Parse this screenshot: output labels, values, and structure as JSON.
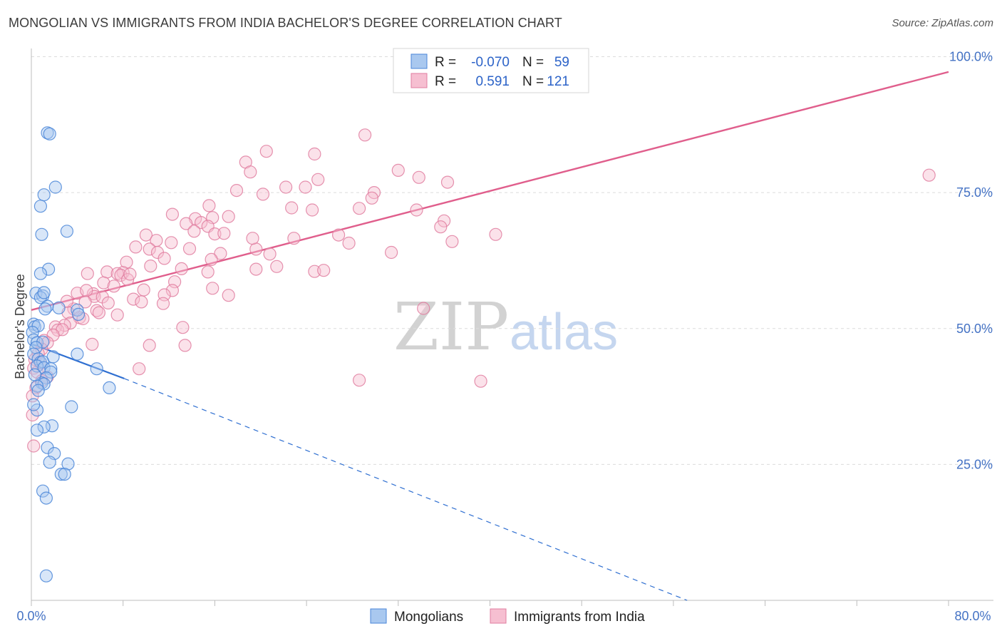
{
  "title": "MONGOLIAN VS IMMIGRANTS FROM INDIA BACHELOR'S DEGREE CORRELATION CHART",
  "source": "Source: ZipAtlas.com",
  "watermark": {
    "zip": "ZIP",
    "atlas": "atlas"
  },
  "colors": {
    "blue": "#4a86d8",
    "blue_fill": "#a9c8ef",
    "blue_line": "#2f6fd1",
    "pink": "#e07ea0",
    "pink_fill": "#f6bfd1",
    "pink_line": "#e05e8c",
    "grid": "#dcdcdc",
    "tick": "#4472c4"
  },
  "legend": {
    "r_label": "R =",
    "n_label": "N =",
    "rows": [
      {
        "series": "mongolians",
        "r": "-0.070",
        "n": "59"
      },
      {
        "series": "india",
        "r": "0.591",
        "n": "121"
      }
    ]
  },
  "bottom_legend": [
    "Mongolians",
    "Immigrants from India"
  ],
  "chart_data": {
    "type": "scatter",
    "title": "MONGOLIAN VS IMMIGRANTS FROM INDIA BACHELOR'S DEGREE CORRELATION CHART",
    "xlabel": "",
    "ylabel": "Bachelor's Degree",
    "xlim": [
      0,
      80
    ],
    "ylim": [
      0,
      100
    ],
    "x_tick_labels": [
      "0.0%",
      "80.0%"
    ],
    "y_ticks": [
      25,
      50,
      75,
      100
    ],
    "y_tick_labels": [
      "25.0%",
      "50.0%",
      "75.0%",
      "100.0%"
    ],
    "grid": true,
    "legend_position": "top-center",
    "series": [
      {
        "name": "Mongolians",
        "color": "#4a86d8",
        "r": -0.07,
        "n": 59,
        "trend": {
          "x0": 0,
          "y0": 47.2,
          "x1": 8.1,
          "y1": 40.8,
          "dashed_to_x": 57.2,
          "dashed_to_y": 0
        },
        "points": [
          [
            1.4,
            86.0
          ],
          [
            1.6,
            85.8
          ],
          [
            2.1,
            76.0
          ],
          [
            1.1,
            74.6
          ],
          [
            0.8,
            72.5
          ],
          [
            3.1,
            67.9
          ],
          [
            0.9,
            67.3
          ],
          [
            1.5,
            60.9
          ],
          [
            0.8,
            60.1
          ],
          [
            0.4,
            56.5
          ],
          [
            1.0,
            56.0
          ],
          [
            0.8,
            55.7
          ],
          [
            1.1,
            56.6
          ],
          [
            1.4,
            54.1
          ],
          [
            1.2,
            53.6
          ],
          [
            2.4,
            53.8
          ],
          [
            4.0,
            53.4
          ],
          [
            4.1,
            52.6
          ],
          [
            0.2,
            50.8
          ],
          [
            0.3,
            50.3
          ],
          [
            0.6,
            50.5
          ],
          [
            0.1,
            49.3
          ],
          [
            0.2,
            47.9
          ],
          [
            0.5,
            47.4
          ],
          [
            1.0,
            47.5
          ],
          [
            0.4,
            46.5
          ],
          [
            0.2,
            45.3
          ],
          [
            4.0,
            45.3
          ],
          [
            1.9,
            44.8
          ],
          [
            0.6,
            44.4
          ],
          [
            0.8,
            43.8
          ],
          [
            1.0,
            43.9
          ],
          [
            0.5,
            43.1
          ],
          [
            1.1,
            42.8
          ],
          [
            1.7,
            42.6
          ],
          [
            1.7,
            42.0
          ],
          [
            5.7,
            42.6
          ],
          [
            1.3,
            40.9
          ],
          [
            0.9,
            40.0
          ],
          [
            1.1,
            39.8
          ],
          [
            0.5,
            39.4
          ],
          [
            0.6,
            38.6
          ],
          [
            6.8,
            39.1
          ],
          [
            3.5,
            35.6
          ],
          [
            0.5,
            35.0
          ],
          [
            1.8,
            32.1
          ],
          [
            1.1,
            31.9
          ],
          [
            0.5,
            31.3
          ],
          [
            1.4,
            28.1
          ],
          [
            2.0,
            27.0
          ],
          [
            1.6,
            25.4
          ],
          [
            3.2,
            25.1
          ],
          [
            2.6,
            23.2
          ],
          [
            2.9,
            23.2
          ],
          [
            1.0,
            20.1
          ],
          [
            1.3,
            18.8
          ],
          [
            1.3,
            4.5
          ],
          [
            0.2,
            36.0
          ],
          [
            0.3,
            41.5
          ]
        ]
      },
      {
        "name": "Immigrants from India",
        "color": "#e07ea0",
        "r": 0.591,
        "n": 121,
        "trend": {
          "x0": 0,
          "y0": 53.4,
          "x1": 80,
          "y1": 97.2
        },
        "points": [
          [
            29.1,
            85.6
          ],
          [
            20.5,
            82.6
          ],
          [
            24.7,
            82.1
          ],
          [
            18.7,
            80.6
          ],
          [
            19.1,
            78.8
          ],
          [
            32.0,
            79.1
          ],
          [
            33.8,
            77.8
          ],
          [
            25.0,
            77.4
          ],
          [
            36.3,
            76.9
          ],
          [
            78.3,
            78.2
          ],
          [
            23.9,
            76.0
          ],
          [
            22.2,
            76.0
          ],
          [
            17.9,
            75.4
          ],
          [
            20.2,
            74.7
          ],
          [
            29.9,
            75.0
          ],
          [
            29.7,
            74.0
          ],
          [
            15.5,
            72.6
          ],
          [
            22.7,
            72.2
          ],
          [
            24.5,
            71.8
          ],
          [
            28.6,
            72.1
          ],
          [
            33.6,
            71.8
          ],
          [
            12.3,
            71.0
          ],
          [
            15.8,
            70.4
          ],
          [
            17.2,
            70.6
          ],
          [
            14.3,
            70.2
          ],
          [
            14.8,
            69.5
          ],
          [
            15.4,
            68.8
          ],
          [
            13.5,
            69.3
          ],
          [
            36.0,
            69.8
          ],
          [
            35.7,
            68.7
          ],
          [
            14.2,
            67.9
          ],
          [
            16.0,
            67.4
          ],
          [
            10.0,
            67.2
          ],
          [
            16.8,
            67.5
          ],
          [
            26.8,
            67.2
          ],
          [
            22.9,
            66.6
          ],
          [
            40.5,
            67.3
          ],
          [
            10.9,
            66.2
          ],
          [
            12.2,
            65.8
          ],
          [
            27.7,
            65.7
          ],
          [
            36.7,
            66.0
          ],
          [
            9.1,
            65.0
          ],
          [
            10.3,
            64.6
          ],
          [
            11.0,
            64.0
          ],
          [
            13.8,
            64.7
          ],
          [
            19.6,
            64.6
          ],
          [
            16.5,
            63.8
          ],
          [
            20.8,
            63.7
          ],
          [
            11.6,
            62.9
          ],
          [
            15.7,
            62.7
          ],
          [
            8.3,
            62.2
          ],
          [
            31.4,
            64.0
          ],
          [
            10.4,
            61.5
          ],
          [
            21.4,
            61.4
          ],
          [
            13.1,
            61.0
          ],
          [
            19.6,
            60.9
          ],
          [
            15.4,
            60.4
          ],
          [
            24.7,
            60.5
          ],
          [
            25.5,
            60.7
          ],
          [
            4.9,
            60.1
          ],
          [
            6.6,
            60.4
          ],
          [
            8.0,
            60.3
          ],
          [
            7.5,
            60.1
          ],
          [
            7.8,
            59.8
          ],
          [
            8.4,
            59.0
          ],
          [
            6.3,
            58.4
          ],
          [
            12.5,
            58.6
          ],
          [
            15.8,
            57.4
          ],
          [
            7.2,
            57.8
          ],
          [
            9.8,
            57.1
          ],
          [
            12.3,
            57.0
          ],
          [
            4.0,
            56.5
          ],
          [
            5.4,
            56.4
          ],
          [
            5.5,
            55.9
          ],
          [
            6.2,
            55.8
          ],
          [
            17.2,
            56.1
          ],
          [
            8.9,
            55.4
          ],
          [
            11.6,
            56.2
          ],
          [
            4.7,
            54.9
          ],
          [
            6.7,
            54.7
          ],
          [
            9.6,
            54.9
          ],
          [
            11.5,
            54.6
          ],
          [
            3.7,
            53.6
          ],
          [
            5.7,
            53.3
          ],
          [
            5.9,
            52.9
          ],
          [
            3.2,
            52.9
          ],
          [
            7.5,
            52.5
          ],
          [
            4.2,
            52.0
          ],
          [
            4.5,
            51.8
          ],
          [
            3.4,
            51.0
          ],
          [
            2.9,
            50.6
          ],
          [
            2.1,
            50.3
          ],
          [
            2.3,
            49.7
          ],
          [
            2.7,
            49.8
          ],
          [
            13.2,
            50.2
          ],
          [
            1.9,
            48.8
          ],
          [
            1.1,
            47.8
          ],
          [
            1.4,
            47.4
          ],
          [
            5.3,
            47.1
          ],
          [
            10.3,
            46.9
          ],
          [
            13.4,
            46.9
          ],
          [
            0.9,
            46.2
          ],
          [
            0.6,
            45.4
          ],
          [
            0.3,
            44.3
          ],
          [
            0.8,
            43.6
          ],
          [
            0.2,
            42.7
          ],
          [
            9.4,
            42.6
          ],
          [
            0.5,
            42.0
          ],
          [
            1.4,
            41.1
          ],
          [
            0.9,
            40.4
          ],
          [
            28.6,
            40.5
          ],
          [
            39.2,
            40.3
          ],
          [
            0.4,
            39.1
          ],
          [
            0.1,
            37.6
          ],
          [
            0.1,
            34.1
          ],
          [
            0.2,
            28.4
          ],
          [
            34.2,
            53.7
          ],
          [
            19.3,
            66.6
          ],
          [
            8.6,
            60.0
          ],
          [
            4.8,
            57.0
          ],
          [
            3.1,
            55.0
          ]
        ]
      }
    ]
  }
}
